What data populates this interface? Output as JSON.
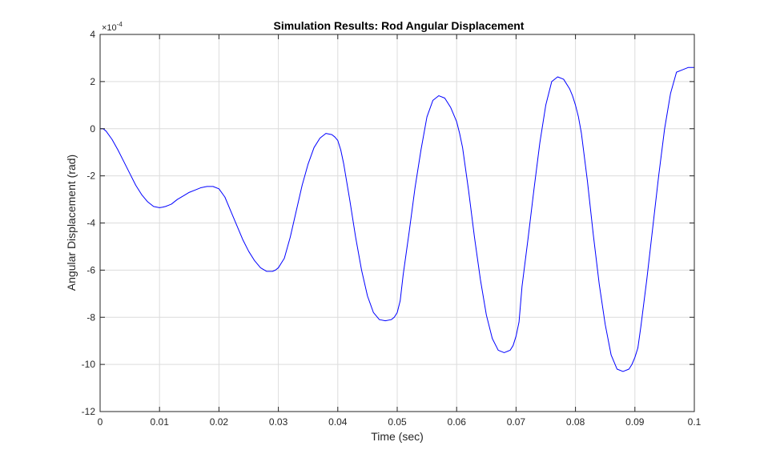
{
  "chart_data": {
    "type": "line",
    "title": "Simulation Results: Rod Angular Displacement",
    "xlabel": "Time (sec)",
    "ylabel": "Angular Displacement (rad)",
    "y_exponent_base": "×10",
    "y_exponent_power": "-4",
    "xlim": [
      0,
      0.1
    ],
    "ylim": [
      -12,
      4
    ],
    "xticks": [
      0,
      0.01,
      0.02,
      0.03,
      0.04,
      0.05,
      0.06,
      0.07,
      0.08,
      0.09,
      0.1
    ],
    "xtick_labels": [
      "0",
      "0.01",
      "0.02",
      "0.03",
      "0.04",
      "0.05",
      "0.06",
      "0.07",
      "0.08",
      "0.09",
      "0.1"
    ],
    "yticks": [
      -12,
      -10,
      -8,
      -6,
      -4,
      -2,
      0,
      2,
      4
    ],
    "ytick_labels": [
      "-12",
      "-10",
      "-8",
      "-6",
      "-4",
      "-2",
      "0",
      "2",
      "4"
    ],
    "grid": true,
    "colors": {
      "line": "#0000ff",
      "grid": "#dcdcdc",
      "axes": "#262626"
    },
    "series": [
      {
        "x": [
          0,
          0.0005,
          0.001,
          0.002,
          0.003,
          0.004,
          0.005,
          0.006,
          0.007,
          0.008,
          0.009,
          0.01,
          0.0105,
          0.011,
          0.0115,
          0.012,
          0.013,
          0.014,
          0.015,
          0.016,
          0.017,
          0.018,
          0.019,
          0.02,
          0.021,
          0.022,
          0.023,
          0.024,
          0.025,
          0.026,
          0.027,
          0.028,
          0.029,
          0.0295,
          0.03,
          0.0305,
          0.031,
          0.032,
          0.033,
          0.034,
          0.035,
          0.036,
          0.037,
          0.038,
          0.039,
          0.0395,
          0.04,
          0.0405,
          0.041,
          0.042,
          0.043,
          0.044,
          0.045,
          0.046,
          0.047,
          0.048,
          0.049,
          0.0495,
          0.05,
          0.0505,
          0.051,
          0.052,
          0.053,
          0.054,
          0.055,
          0.056,
          0.057,
          0.058,
          0.059,
          0.0595,
          0.06,
          0.0605,
          0.061,
          0.062,
          0.063,
          0.064,
          0.065,
          0.066,
          0.067,
          0.068,
          0.069,
          0.0695,
          0.07,
          0.0705,
          0.071,
          0.072,
          0.073,
          0.074,
          0.075,
          0.076,
          0.077,
          0.078,
          0.079,
          0.0795,
          0.08,
          0.0805,
          0.081,
          0.082,
          0.083,
          0.084,
          0.085,
          0.086,
          0.087,
          0.088,
          0.089,
          0.0895,
          0.09,
          0.0905,
          0.091,
          0.092,
          0.093,
          0.094,
          0.095,
          0.096,
          0.097,
          0.098,
          0.099,
          0.0995,
          0.1
        ],
        "y": [
          0,
          0,
          -0.1,
          -0.45,
          -0.9,
          -1.4,
          -1.9,
          -2.4,
          -2.8,
          -3.1,
          -3.3,
          -3.35,
          -3.33,
          -3.3,
          -3.25,
          -3.2,
          -3.0,
          -2.85,
          -2.7,
          -2.6,
          -2.5,
          -2.45,
          -2.45,
          -2.55,
          -2.9,
          -3.5,
          -4.1,
          -4.7,
          -5.2,
          -5.6,
          -5.9,
          -6.05,
          -6.05,
          -6.0,
          -5.9,
          -5.7,
          -5.5,
          -4.6,
          -3.5,
          -2.4,
          -1.5,
          -0.8,
          -0.4,
          -0.2,
          -0.25,
          -0.35,
          -0.5,
          -0.9,
          -1.5,
          -3.0,
          -4.6,
          -6.0,
          -7.1,
          -7.8,
          -8.1,
          -8.15,
          -8.1,
          -8.0,
          -7.8,
          -7.3,
          -6.2,
          -4.4,
          -2.5,
          -0.9,
          0.5,
          1.2,
          1.4,
          1.3,
          0.9,
          0.6,
          0.3,
          -0.2,
          -0.8,
          -2.6,
          -4.6,
          -6.4,
          -7.9,
          -8.9,
          -9.4,
          -9.5,
          -9.4,
          -9.2,
          -8.8,
          -8.2,
          -6.7,
          -4.7,
          -2.6,
          -0.6,
          1.0,
          2.0,
          2.2,
          2.1,
          1.7,
          1.4,
          1.0,
          0.5,
          -0.2,
          -2.2,
          -4.5,
          -6.6,
          -8.3,
          -9.6,
          -10.2,
          -10.3,
          -10.2,
          -10.0,
          -9.7,
          -9.3,
          -8.4,
          -6.4,
          -4.2,
          -2.0,
          0,
          1.5,
          2.4,
          2.5,
          2.6,
          2.6,
          2.6
        ]
      }
    ]
  }
}
